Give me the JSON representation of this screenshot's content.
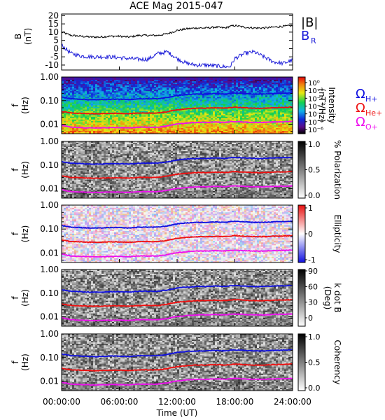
{
  "title": "ACE Mag 2015-047",
  "colors": {
    "B_total": "#000000",
    "B_R": "#1a1ad8",
    "H_plus": "#1010e0",
    "He_plus": "#ee1010",
    "O_plus": "#ee10ee",
    "frame": "#000000"
  },
  "chart_data": [
    {
      "type": "line",
      "panel": "magnetic-field",
      "ylabel": "B",
      "yunit": "(nT)",
      "ylim": [
        -13,
        21
      ],
      "yticks": [
        "20",
        "15",
        "10",
        "5",
        "0",
        "-5",
        "-10"
      ],
      "ytick_values": [
        20,
        15,
        10,
        5,
        0,
        -5,
        -10
      ],
      "x_hours": [
        0,
        1,
        2,
        3,
        4,
        5,
        6,
        7,
        8,
        9,
        10,
        11,
        11.5,
        12,
        13,
        14,
        15,
        16,
        17,
        17.5,
        18,
        19,
        20,
        21,
        22,
        23,
        24
      ],
      "series": [
        {
          "name": "|B|",
          "values": [
            10,
            8,
            7.5,
            7,
            7,
            7.5,
            7.5,
            7,
            8,
            8,
            8,
            9,
            10,
            11,
            12,
            12.5,
            12.5,
            13,
            12.5,
            13.5,
            14,
            13,
            12.5,
            12.5,
            13,
            13.5,
            14
          ]
        },
        {
          "name": "B_R",
          "values": [
            2,
            -3,
            -4.5,
            -5,
            -5,
            -5,
            -5.5,
            -6,
            -6.5,
            -6.5,
            -3,
            -2,
            -4,
            -6,
            -9,
            -10,
            -10,
            -10.5,
            -11,
            -11,
            -6,
            -3,
            -2,
            -5,
            -8,
            -9,
            -7
          ]
        }
      ],
      "legend": [
        "|B|",
        "B_R"
      ],
      "legend_subscript": "R",
      "legend_placement": "right"
    },
    {
      "type": "heatmap",
      "panel": "intensity",
      "ylabel": "f",
      "yunit": "(Hz)",
      "yscale": "log",
      "ylim": [
        0.004,
        1.0
      ],
      "yticks": [
        "1.00",
        "0.10",
        "0.01"
      ],
      "colorbar": {
        "label": "Intensity",
        "unit": "(nT²/Hz)",
        "ticks": [
          "10⁰",
          "10⁻¹",
          "10⁻²",
          "10⁻³",
          "10⁻⁴",
          "10⁻⁵",
          "10⁻⁶"
        ],
        "scale": "rainbow"
      },
      "legend": [
        "ΩH+",
        "ΩHe+",
        "ΩO+"
      ],
      "legend_subscripts": [
        "H+",
        "He+",
        "O+"
      ],
      "legend_placement": "right"
    },
    {
      "type": "heatmap",
      "panel": "polarization",
      "ylabel": "f",
      "yunit": "(Hz)",
      "yscale": "log",
      "ylim": [
        0.004,
        1.0
      ],
      "yticks": [
        "1.00",
        "0.10",
        "0.01"
      ],
      "colorbar": {
        "label": "% Polarization",
        "ticks": [
          "1.0",
          "0.5",
          "0.0"
        ],
        "scale": "gray"
      }
    },
    {
      "type": "heatmap",
      "panel": "ellipticity",
      "ylabel": "f",
      "yunit": "(Hz)",
      "yscale": "log",
      "ylim": [
        0.004,
        1.0
      ],
      "yticks": [
        "1.00",
        "0.10",
        "0.01"
      ],
      "colorbar": {
        "label": "Ellipticity",
        "ticks": [
          "1",
          "0",
          "-1"
        ],
        "scale": "red-white-blue"
      }
    },
    {
      "type": "heatmap",
      "panel": "kdotb",
      "ylabel": "f",
      "yunit": "(Hz)",
      "yscale": "log",
      "ylim": [
        0.004,
        1.0
      ],
      "yticks": [
        "1.00",
        "0.10",
        "0.01"
      ],
      "colorbar": {
        "label": "k dot B",
        "unit": "(Deg)",
        "ticks": [
          "90",
          "60",
          "30",
          "0"
        ],
        "scale": "gray"
      }
    },
    {
      "type": "heatmap",
      "panel": "coherency",
      "ylabel": "f",
      "yunit": "(Hz)",
      "yscale": "log",
      "ylim": [
        0.004,
        1.0
      ],
      "yticks": [
        "1.00",
        "0.10",
        "0.01"
      ],
      "colorbar": {
        "label": "Coherency",
        "ticks": [
          "1.0",
          "0.5",
          "0.0"
        ],
        "scale": "gray"
      }
    }
  ],
  "gyrofrequencies": {
    "x_hours": [
      0,
      1,
      2,
      3,
      4,
      5,
      6,
      7,
      8,
      9,
      10,
      11,
      11.5,
      12,
      13,
      14,
      15,
      16,
      17,
      17.5,
      18,
      19,
      20,
      21,
      22,
      23,
      24
    ],
    "H_plus": [
      0.14,
      0.12,
      0.115,
      0.11,
      0.11,
      0.115,
      0.115,
      0.11,
      0.12,
      0.12,
      0.12,
      0.135,
      0.15,
      0.165,
      0.18,
      0.19,
      0.19,
      0.2,
      0.19,
      0.205,
      0.21,
      0.2,
      0.19,
      0.19,
      0.2,
      0.205,
      0.21
    ],
    "He_plus": [
      0.035,
      0.03,
      0.029,
      0.028,
      0.028,
      0.029,
      0.029,
      0.028,
      0.03,
      0.03,
      0.03,
      0.034,
      0.038,
      0.041,
      0.045,
      0.048,
      0.048,
      0.05,
      0.048,
      0.051,
      0.053,
      0.05,
      0.048,
      0.048,
      0.05,
      0.051,
      0.053
    ],
    "O_plus": [
      0.009,
      0.0075,
      0.0072,
      0.007,
      0.007,
      0.0072,
      0.0072,
      0.007,
      0.0075,
      0.0075,
      0.0075,
      0.0085,
      0.0095,
      0.0103,
      0.0112,
      0.012,
      0.012,
      0.0125,
      0.012,
      0.0128,
      0.0132,
      0.0125,
      0.012,
      0.012,
      0.0125,
      0.0128,
      0.0132
    ]
  },
  "xaxis": {
    "label": "Time (UT)",
    "ticks": [
      "00:00:00",
      "06:00:00",
      "12:00:00",
      "18:00:00",
      "24:00:00"
    ],
    "tick_hours": [
      0,
      6,
      12,
      18,
      24
    ]
  }
}
